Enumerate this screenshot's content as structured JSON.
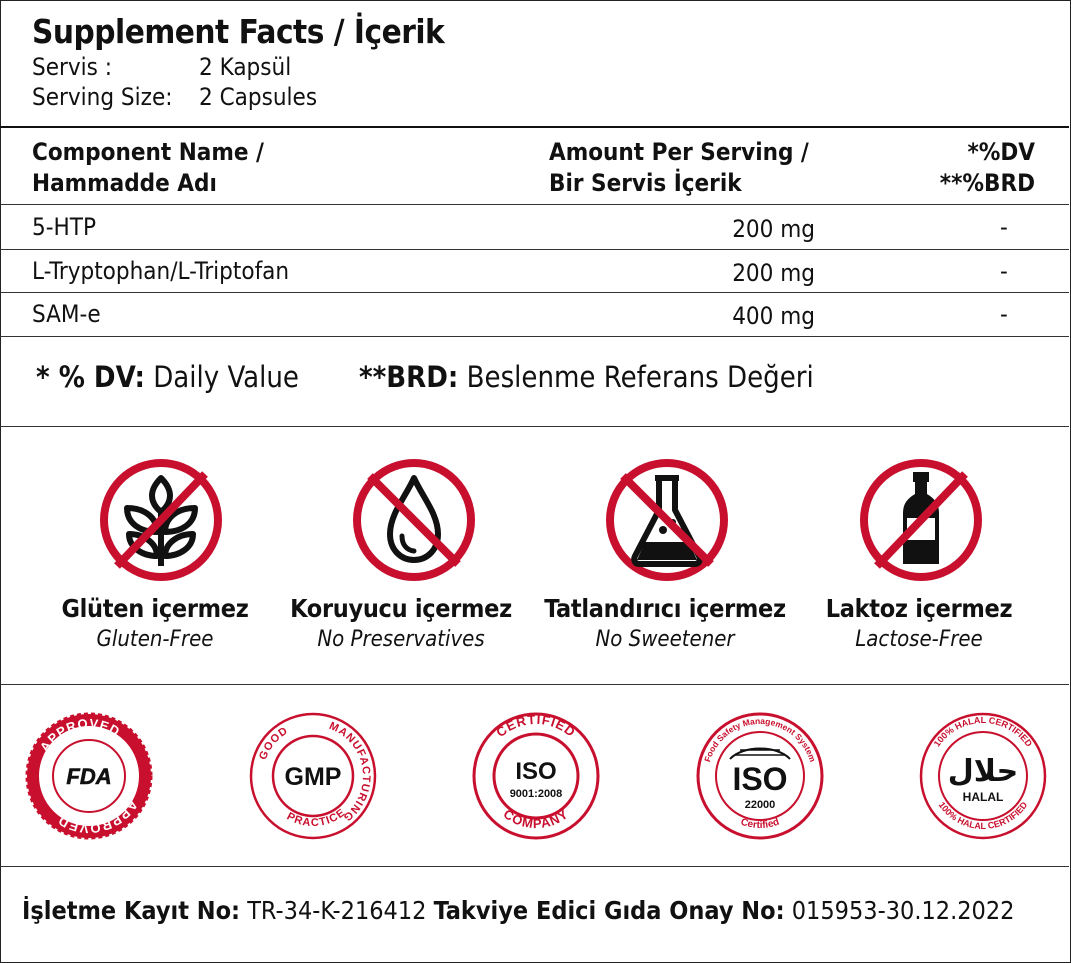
{
  "header": {
    "title": "Supplement Facts / İçerik",
    "serving_tr_key": "Servis :",
    "serving_tr_value": "2 Kapsül",
    "serving_en_key": "Serving Size:",
    "serving_en_value": "2 Capsules"
  },
  "table": {
    "col_name_line1": "Component Name /",
    "col_name_line2": "Hammadde Adı",
    "col_amount_line1": "Amount Per Serving /",
    "col_amount_line2": "Bir Servis İçerik",
    "col_dv_line1": "*%DV",
    "col_dv_line2": "**%BRD",
    "rows": [
      {
        "name": "5-HTP",
        "amount": "200 mg",
        "dv": "-"
      },
      {
        "name": "L-Tryptophan/L-Triptofan",
        "amount": "200 mg",
        "dv": "-"
      },
      {
        "name": "SAM-e",
        "amount": "400 mg",
        "dv": "-"
      }
    ]
  },
  "notes": {
    "dv_key": "* % DV:",
    "dv_value": "Daily Value",
    "brd_key": "**BRD:",
    "brd_value": "Beslenme Referans Değeri"
  },
  "free_from": [
    {
      "tr": "Glüten içermez",
      "en": "Gluten-Free",
      "icon": "wheat-icon"
    },
    {
      "tr": "Koruyucu içermez",
      "en": "No Preservatives",
      "icon": "drop-icon"
    },
    {
      "tr": "Tatlandırıcı içermez",
      "en": "No Sweetener",
      "icon": "flask-icon"
    },
    {
      "tr": "Laktoz içermez",
      "en": "Lactose-Free",
      "icon": "bottle-icon"
    }
  ],
  "badges": {
    "fda": {
      "ring": "APPROVED",
      "center": "FDA"
    },
    "gmp": {
      "ring_top": "MANUFACTURING",
      "ring_left": "GOOD",
      "ring_bottom": "PRACTICE",
      "center": "GMP"
    },
    "iso9001": {
      "ring_top": "CERTIFIED",
      "ring_bottom": "COMPANY",
      "center": "ISO",
      "sub": "9001:2008"
    },
    "iso22000": {
      "ring_top": "Food Safety Management System",
      "center": "ISO",
      "sub": "22000",
      "ring_bottom": "Certified"
    },
    "halal": {
      "ring": "100% HALAL CERTIFIED",
      "arabic": "حلال",
      "center": "HALAL"
    }
  },
  "footer": {
    "reg_label": "İşletme Kayıt No:",
    "reg_value": "TR-34-K-216412",
    "approval_label": "Takviye Edici Gıda Onay No:",
    "approval_value": "015953-30.12.2022"
  },
  "colors": {
    "accent_red": "#c8102e",
    "ink": "#111111"
  }
}
